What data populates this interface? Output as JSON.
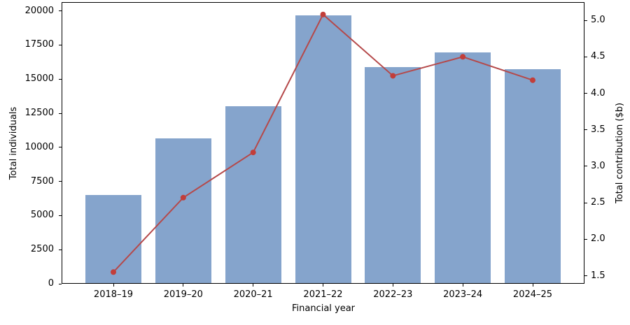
{
  "chart_data": {
    "type": "bar",
    "subtype": "bar-line-combo-dual-axis",
    "title": "",
    "xlabel": "Financial year",
    "ylabel_left": "Total individuals",
    "ylabel_right": "Total contribution ($b)",
    "categories": [
      "2018–19",
      "2019–20",
      "2020–21",
      "2021–22",
      "2022–23",
      "2023–24",
      "2024–25"
    ],
    "series": [
      {
        "name": "Total individuals",
        "type": "bar",
        "axis": "left",
        "color": "#85a4cc",
        "values": [
          6500,
          10650,
          13000,
          19700,
          15900,
          16950,
          15750
        ]
      },
      {
        "name": "Total contribution ($b)",
        "type": "line",
        "axis": "right",
        "color": "#b5494a",
        "marker_color": "#c23e3a",
        "values": [
          1.55,
          2.57,
          3.19,
          5.08,
          4.24,
          4.5,
          4.18
        ]
      }
    ],
    "left_axis": {
      "ticks": [
        0,
        2500,
        5000,
        7500,
        10000,
        12500,
        15000,
        17500,
        20000
      ],
      "range": [
        0,
        20650
      ]
    },
    "right_axis": {
      "ticks": [
        1.5,
        2.0,
        2.5,
        3.0,
        3.5,
        4.0,
        4.5,
        5.0
      ],
      "range": [
        1.39,
        5.25
      ],
      "decimals": 1
    },
    "grid": false,
    "legend": "none",
    "spine_color": "#000000",
    "background": "#ffffff"
  }
}
